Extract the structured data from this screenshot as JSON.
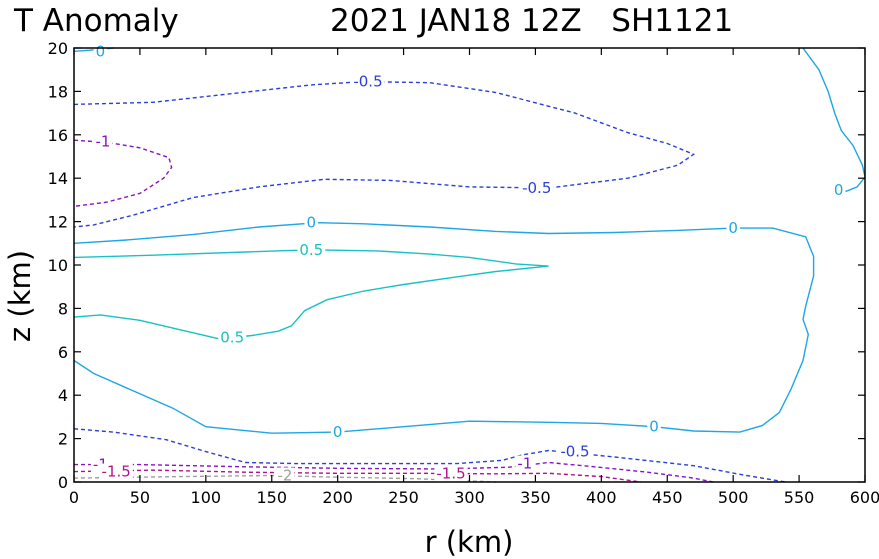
{
  "chart_data": {
    "type": "contour",
    "title_left": "T Anomaly",
    "title_right": "2021 JAN18 12Z   SH1121",
    "xlabel": "r (km)",
    "ylabel": "z (km)",
    "xlim": [
      0,
      600
    ],
    "ylim": [
      0,
      20
    ],
    "xticks": [
      0,
      50,
      100,
      150,
      200,
      250,
      300,
      350,
      400,
      450,
      500,
      550,
      600
    ],
    "yticks": [
      0,
      2,
      4,
      6,
      8,
      10,
      12,
      14,
      16,
      18,
      20
    ],
    "colors": {
      "zero": "#1ea6e6",
      "pos05": "#19c2c2",
      "neg05": "#2b3fd6",
      "neg1": "#8a12c6",
      "neg15": "#b0148c",
      "neg2": "#a0a0a0"
    },
    "contours": [
      {
        "id": "neg05-upper",
        "level": -0.5,
        "style": "neg05",
        "dashed": true,
        "points": [
          [
            0,
            17.4
          ],
          [
            60,
            17.5
          ],
          [
            120,
            17.9
          ],
          [
            180,
            18.3
          ],
          [
            220,
            18.45
          ],
          [
            270,
            18.4
          ],
          [
            320,
            17.95
          ],
          [
            380,
            17.0
          ],
          [
            420,
            16.1
          ],
          [
            450,
            15.6
          ],
          [
            470,
            15.1
          ],
          [
            458,
            14.6
          ],
          [
            420,
            14.0
          ],
          [
            360,
            13.55
          ],
          [
            300,
            13.6
          ],
          [
            240,
            13.9
          ],
          [
            190,
            13.95
          ],
          [
            140,
            13.6
          ],
          [
            90,
            13.1
          ],
          [
            45,
            12.3
          ],
          [
            15,
            11.85
          ],
          [
            0,
            11.75
          ]
        ]
      },
      {
        "id": "neg1-upper",
        "level": -1,
        "style": "neg1",
        "dashed": true,
        "points": [
          [
            0,
            15.75
          ],
          [
            25,
            15.65
          ],
          [
            50,
            15.4
          ],
          [
            72,
            14.95
          ],
          [
            74,
            14.5
          ],
          [
            68,
            14.0
          ],
          [
            50,
            13.3
          ],
          [
            25,
            12.9
          ],
          [
            0,
            12.7
          ]
        ]
      },
      {
        "id": "zero-top-left",
        "level": 0,
        "style": "zero",
        "dashed": false,
        "points": [
          [
            0,
            19.85
          ],
          [
            12,
            19.9
          ],
          [
            30,
            20.0
          ]
        ]
      },
      {
        "id": "zero-right-upper",
        "level": 0,
        "style": "zero",
        "dashed": false,
        "points": [
          [
            553,
            20
          ],
          [
            565,
            19.0
          ],
          [
            572,
            18.0
          ],
          [
            577,
            17.0
          ],
          [
            582,
            16.2
          ],
          [
            591,
            15.5
          ],
          [
            598,
            14.6
          ],
          [
            600,
            14.05
          ],
          [
            594,
            13.6
          ],
          [
            586,
            13.4
          ],
          [
            578,
            13.4
          ]
        ]
      },
      {
        "id": "zero-main",
        "level": 0,
        "style": "zero",
        "dashed": false,
        "points": [
          [
            0,
            11.0
          ],
          [
            40,
            11.15
          ],
          [
            90,
            11.4
          ],
          [
            140,
            11.75
          ],
          [
            185,
            11.95
          ],
          [
            220,
            11.9
          ],
          [
            270,
            11.75
          ],
          [
            320,
            11.55
          ],
          [
            360,
            11.45
          ],
          [
            410,
            11.5
          ],
          [
            460,
            11.6
          ],
          [
            500,
            11.7
          ],
          [
            530,
            11.7
          ],
          [
            555,
            11.3
          ],
          [
            561,
            10.4
          ],
          [
            561,
            9.5
          ],
          [
            555,
            8.1
          ],
          [
            553,
            7.5
          ],
          [
            557,
            6.8
          ],
          [
            553,
            5.6
          ],
          [
            544,
            4.3
          ],
          [
            535,
            3.2
          ],
          [
            522,
            2.6
          ],
          [
            505,
            2.3
          ],
          [
            470,
            2.35
          ],
          [
            440,
            2.55
          ],
          [
            400,
            2.7
          ],
          [
            360,
            2.75
          ],
          [
            300,
            2.8
          ],
          [
            250,
            2.55
          ],
          [
            200,
            2.3
          ],
          [
            150,
            2.25
          ],
          [
            100,
            2.55
          ],
          [
            75,
            3.4
          ],
          [
            45,
            4.2
          ],
          [
            15,
            5.0
          ],
          [
            0,
            5.6
          ]
        ]
      },
      {
        "id": "pos05",
        "level": 0.5,
        "style": "pos05",
        "dashed": false,
        "points": [
          [
            0,
            10.35
          ],
          [
            60,
            10.45
          ],
          [
            130,
            10.6
          ],
          [
            180,
            10.7
          ],
          [
            230,
            10.65
          ],
          [
            270,
            10.5
          ],
          [
            300,
            10.35
          ],
          [
            335,
            10.05
          ],
          [
            360,
            9.95
          ],
          [
            320,
            9.7
          ],
          [
            290,
            9.45
          ],
          [
            250,
            9.1
          ],
          [
            220,
            8.8
          ],
          [
            192,
            8.4
          ],
          [
            175,
            7.9
          ],
          [
            165,
            7.2
          ],
          [
            155,
            6.95
          ],
          [
            135,
            6.75
          ],
          [
            110,
            6.6
          ],
          [
            85,
            6.95
          ],
          [
            50,
            7.45
          ],
          [
            20,
            7.7
          ],
          [
            0,
            7.6
          ]
        ]
      },
      {
        "id": "neg05-lower",
        "level": -0.5,
        "style": "neg05",
        "dashed": true,
        "points": [
          [
            0,
            2.45
          ],
          [
            30,
            2.3
          ],
          [
            70,
            1.95
          ],
          [
            100,
            1.4
          ],
          [
            130,
            0.9
          ],
          [
            170,
            0.85
          ],
          [
            230,
            0.85
          ],
          [
            290,
            0.85
          ],
          [
            325,
            1.0
          ],
          [
            340,
            1.25
          ],
          [
            360,
            1.45
          ],
          [
            410,
            1.15
          ],
          [
            470,
            0.75
          ],
          [
            510,
            0.3
          ],
          [
            540,
            0.0
          ]
        ]
      },
      {
        "id": "neg1-lower",
        "level": -1,
        "style": "neg1",
        "dashed": true,
        "points": [
          [
            0,
            0.8
          ],
          [
            50,
            0.8
          ],
          [
            130,
            0.7
          ],
          [
            200,
            0.63
          ],
          [
            280,
            0.6
          ],
          [
            330,
            0.68
          ],
          [
            360,
            0.9
          ],
          [
            395,
            0.7
          ],
          [
            435,
            0.45
          ],
          [
            470,
            0.18
          ],
          [
            485,
            0.0
          ]
        ]
      },
      {
        "id": "neg15-lower",
        "level": -1.5,
        "style": "neg15",
        "dashed": true,
        "points": [
          [
            0,
            0.48
          ],
          [
            60,
            0.55
          ],
          [
            130,
            0.45
          ],
          [
            200,
            0.4
          ],
          [
            260,
            0.4
          ],
          [
            320,
            0.38
          ],
          [
            360,
            0.4
          ],
          [
            400,
            0.25
          ],
          [
            430,
            0.0
          ]
        ]
      },
      {
        "id": "neg2-lower",
        "level": -2,
        "style": "neg2",
        "dashed": true,
        "points": [
          [
            0,
            0.18
          ],
          [
            80,
            0.25
          ],
          [
            150,
            0.3
          ],
          [
            200,
            0.22
          ],
          [
            260,
            0.15
          ],
          [
            320,
            0.0
          ]
        ]
      }
    ],
    "labels": [
      {
        "text": "0",
        "x": 20,
        "y": 19.85,
        "style": "zero"
      },
      {
        "text": "-0.5",
        "x": 223,
        "y": 18.45,
        "style": "neg05"
      },
      {
        "text": "-1",
        "x": 22,
        "y": 15.7,
        "style": "neg1"
      },
      {
        "text": "-0.5",
        "x": 351,
        "y": 13.55,
        "style": "neg05"
      },
      {
        "text": "0",
        "x": 580,
        "y": 13.45,
        "style": "zero"
      },
      {
        "text": "0",
        "x": 180,
        "y": 11.95,
        "style": "zero"
      },
      {
        "text": "0",
        "x": 500,
        "y": 11.7,
        "style": "zero"
      },
      {
        "text": "0.5",
        "x": 180,
        "y": 10.7,
        "style": "pos05"
      },
      {
        "text": "0.5",
        "x": 120,
        "y": 6.65,
        "style": "pos05"
      },
      {
        "text": "0",
        "x": 200,
        "y": 2.3,
        "style": "zero"
      },
      {
        "text": "0",
        "x": 440,
        "y": 2.55,
        "style": "zero"
      },
      {
        "text": "-0.5",
        "x": 380,
        "y": 1.4,
        "style": "neg05"
      },
      {
        "text": "-1",
        "x": 20,
        "y": 0.8,
        "style": "neg1"
      },
      {
        "text": "-1.5",
        "x": 32,
        "y": 0.48,
        "style": "neg15"
      },
      {
        "text": "-1",
        "x": 342,
        "y": 0.85,
        "style": "neg1"
      },
      {
        "text": "-1.5",
        "x": 286,
        "y": 0.4,
        "style": "neg15"
      },
      {
        "text": "-2",
        "x": 160,
        "y": 0.3,
        "style": "neg2"
      }
    ]
  }
}
